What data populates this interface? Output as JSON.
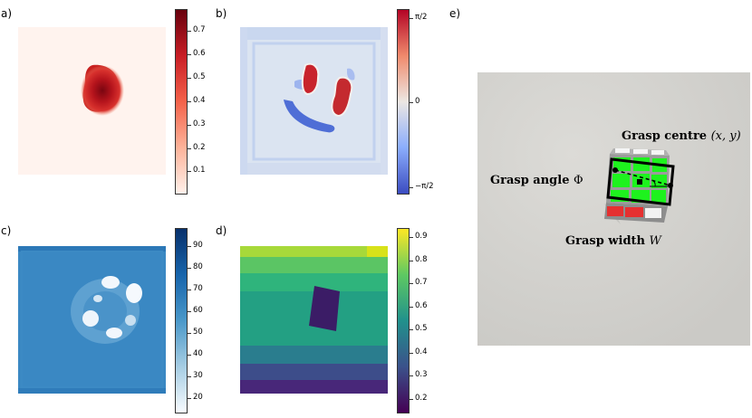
{
  "panels": {
    "a": {
      "label": "a)",
      "colorbar": {
        "ticks": [
          "0.7",
          "0.6",
          "0.5",
          "0.4",
          "0.3",
          "0.2",
          "0.1"
        ],
        "colors": [
          "#67000d",
          "#c81d25",
          "#f4624a",
          "#fdb39a",
          "#fff0ea"
        ]
      }
    },
    "b": {
      "label": "b)",
      "colorbar": {
        "ticks": [
          "π/2",
          "0",
          "−π/2"
        ],
        "colors": [
          "#b40426",
          "#f08a6c",
          "#ece7e3",
          "#8badfd",
          "#3b4cc0"
        ]
      }
    },
    "c": {
      "label": "c)",
      "colorbar": {
        "ticks": [
          "90",
          "80",
          "70",
          "60",
          "50",
          "40",
          "30",
          "20"
        ],
        "colors": [
          "#08306b",
          "#1764ab",
          "#4a98c9",
          "#a6cde3",
          "#f7fbff"
        ]
      }
    },
    "d": {
      "label": "d)",
      "colorbar": {
        "ticks": [
          "0.9",
          "0.8",
          "0.7",
          "0.6",
          "0.5",
          "0.4",
          "0.3",
          "0.2"
        ],
        "colors": [
          "#fde725",
          "#5ec962",
          "#21918c",
          "#3b528b",
          "#440154"
        ]
      }
    },
    "e": {
      "label": "e)"
    }
  },
  "annotations": {
    "centre_text": "Grasp centre",
    "centre_math": "(x, y)",
    "angle_text": "Grasp angle",
    "angle_math": "Φ",
    "width_text": "Grasp width",
    "width_math": "W"
  }
}
